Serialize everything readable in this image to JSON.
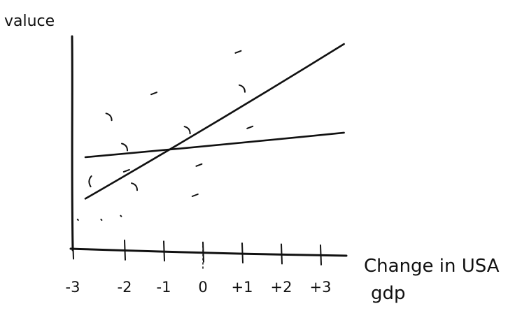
{
  "chart_data": {
    "type": "line",
    "title": "",
    "ylabel": "valuce",
    "xlabel_line1": "Change in USA",
    "xlabel_line2": "gdp",
    "xlim": [
      -3.1,
      3.7
    ],
    "x_ticks": [
      -3,
      -2,
      -1,
      0,
      1,
      2,
      3
    ],
    "x_tick_labels": [
      "-3",
      "-2",
      "-1",
      "0",
      "+1",
      "+2",
      "+3"
    ],
    "zero_line": "dotted",
    "grid": false,
    "series": [
      {
        "style": "steep",
        "x": [
          -3.0,
          3.6
        ],
        "y": [
          0.18,
          1.0
        ]
      },
      {
        "style": "flat",
        "x": [
          -3.0,
          3.6
        ],
        "y": [
          0.4,
          0.53
        ]
      }
    ],
    "scatter_marks": [
      {
        "x": -3.2,
        "y": 0.07,
        "mark": "dot"
      },
      {
        "x": -2.6,
        "y": 0.07,
        "mark": "dot"
      },
      {
        "x": -2.9,
        "y": 0.27,
        "mark": "curve"
      },
      {
        "x": -2.4,
        "y": 0.61,
        "mark": "curve"
      },
      {
        "x": -2.1,
        "y": 0.09,
        "mark": "dot"
      },
      {
        "x": -2.0,
        "y": 0.45,
        "mark": "curve"
      },
      {
        "x": -1.95,
        "y": 0.33,
        "mark": "dash"
      },
      {
        "x": -1.75,
        "y": 0.24,
        "mark": "curve"
      },
      {
        "x": -1.25,
        "y": 0.74,
        "mark": "dash"
      },
      {
        "x": -0.4,
        "y": 0.54,
        "mark": "curve"
      },
      {
        "x": -0.2,
        "y": 0.2,
        "mark": "dash"
      },
      {
        "x": -0.1,
        "y": 0.36,
        "mark": "dash"
      },
      {
        "x": 0.9,
        "y": 0.96,
        "mark": "dash"
      },
      {
        "x": 1.0,
        "y": 0.76,
        "mark": "curve"
      },
      {
        "x": 1.2,
        "y": 0.56,
        "mark": "dash"
      }
    ]
  }
}
